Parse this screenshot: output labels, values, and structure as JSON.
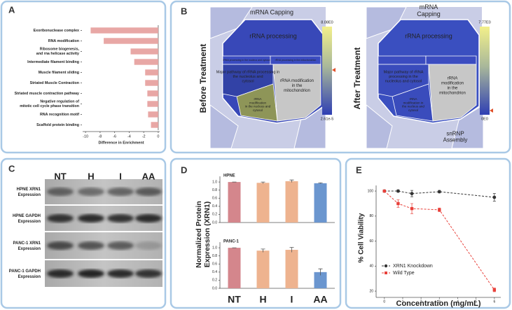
{
  "panel_labels": [
    "A",
    "B",
    "C",
    "D",
    "E"
  ],
  "chart_data": [
    {
      "type": "hbar",
      "categories": [
        "Exoribonuclease complex",
        "RNA modification",
        "Ribosome biogenesis,\nand rna helicase activity",
        "Intermediate filament binding",
        "Muscle filament sliding",
        "Striated Muscle Contraction",
        "Striated muscle contraction pathway",
        "Negative regulation of\nmitotic cell cycle phase transition",
        "RNA recognition motif",
        "Scaffold protein binding"
      ],
      "values": [
        -9.3,
        -7.5,
        -3.8,
        -3.3,
        -1.8,
        -1.8,
        -1.5,
        -1.5,
        -1.4,
        -1.0
      ],
      "color": "#e8a7a5",
      "xlim": [
        -10.4,
        0.2
      ],
      "xticks": [
        -10,
        -8,
        -6,
        -4,
        -2,
        0
      ],
      "xlabel": "Difference in Enrichment"
    },
    {
      "type": "bar_panels",
      "categories": [
        "NT",
        "H",
        "I",
        "AA"
      ],
      "colors": [
        "#d4868c",
        "#eeb38f",
        "#eeb38f",
        "#6b96cf"
      ],
      "ylabel": "Normalized Protein\nExpression (XRN1)",
      "ylim": [
        0,
        1.14
      ],
      "yticks": [
        {
          "value": 0,
          "label": "0.0"
        },
        0.2,
        0.4,
        0.6,
        0.8,
        {
          "value": 1,
          "label": "1.0"
        }
      ],
      "series": [
        {
          "name": "HPNE",
          "values": [
            1.0,
            0.98,
            1.02,
            0.97
          ],
          "errors": [
            0.0,
            0.02,
            0.03,
            0.01
          ]
        },
        {
          "name": "PANC-1",
          "values": [
            1.0,
            0.93,
            0.95,
            0.4
          ],
          "errors": [
            0.0,
            0.04,
            0.06,
            0.08
          ]
        }
      ]
    },
    {
      "type": "line",
      "x": [
        0,
        0.75,
        1.5,
        3,
        6
      ],
      "series": [
        {
          "name": "XRN1 Knockdown",
          "color": "#333333",
          "marker": "circle",
          "values": [
            100,
            100,
            98,
            99.5,
            95
          ],
          "errors": [
            0.5,
            1,
            2.5,
            1,
            3
          ]
        },
        {
          "name": "Wild Type",
          "color": "#e8403a",
          "marker": "square",
          "values": [
            100,
            90,
            86,
            85,
            21
          ],
          "errors": [
            0.5,
            3,
            4,
            1.5,
            1.5
          ]
        }
      ],
      "xlim": [
        -0.45,
        6.35
      ],
      "ylim": [
        15,
        104.5
      ],
      "xticks": [
        0,
        1,
        2,
        3,
        4,
        5,
        6
      ],
      "yticks": [
        20,
        40,
        60,
        80,
        100
      ],
      "xlabel": "Concentration (mg/mL)",
      "ylabel": "% Cell Viability",
      "legend": "lower left",
      "line_style": "dashed"
    }
  ],
  "panel_b": {
    "before": {
      "title": "Before Treatment",
      "labels": [
        "mRNA Capping",
        "rRNA processing",
        "rRNA processing in the nucleus and cytosol",
        "rRNA processing in the mitochondrion",
        "Major pathway of rRNA processing in\nthe nucleolus and\ncytosol",
        "rRNA modification\nin the\nmitochondrion",
        "rRNA\nmodification\nin the nucleus and\ncytosol"
      ],
      "scale": [
        "8.08E0",
        "2.61e-5"
      ]
    },
    "after": {
      "title": "After Treatment",
      "labels": [
        "mRNA\nCapping",
        "rRNA processing",
        "Major pathway of rRNA\nprocessing in the\nnucleolus and cytosol",
        "rRNA\nmodification\nin the\nmitochondrion",
        "rRNA\nmodification in\nthe nucleus and\ncytosol",
        "snRNP\nAssembly"
      ],
      "scale": [
        "7.77E0",
        "0E0"
      ]
    }
  },
  "panel_c": {
    "lanes": [
      "NT",
      "H",
      "I",
      "AA"
    ],
    "rows": [
      "HPNE XRN1\nExpression",
      "HPNE GAPDH\nExpression",
      "PANC-1 XRN1\nExpression",
      "PANC-1 GAPDH\nExpression"
    ]
  }
}
